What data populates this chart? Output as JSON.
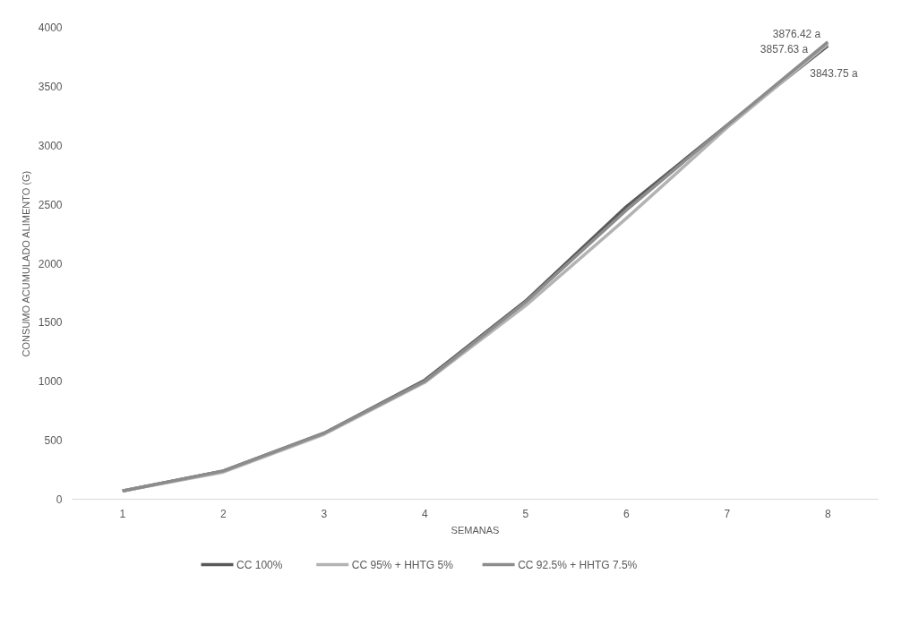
{
  "chart_data": {
    "type": "line",
    "xlabel": "SEMANAS",
    "ylabel": "CONSUMO ACUMULADO ALIMENTO (G)",
    "categories": [
      "1",
      "2",
      "3",
      "4",
      "5",
      "6",
      "7",
      "8"
    ],
    "ylim": [
      0,
      4000
    ],
    "yticks": [
      0,
      500,
      1000,
      1500,
      2000,
      2500,
      3000,
      3500,
      4000
    ],
    "grid": false,
    "legend": "bottom",
    "marker": "none",
    "line_style": "solid",
    "series": [
      {
        "name": "CC 100%",
        "color": "#595959",
        "values": [
          70,
          240,
          560,
          1010,
          1680,
          2480,
          3170,
          3843.75
        ],
        "value_labels": [
          null,
          null,
          null,
          null,
          null,
          null,
          null,
          "3843.75 a"
        ]
      },
      {
        "name": "CC 95% + HHTG 5%",
        "color": "#b3b3b3",
        "values": [
          70,
          230,
          550,
          990,
          1640,
          2380,
          3150,
          3857.63
        ],
        "value_labels": [
          null,
          null,
          null,
          null,
          null,
          null,
          null,
          "3857.63 a"
        ]
      },
      {
        "name": "CC 92.5% + HHTG 7.5%",
        "color": "#8c8c8c",
        "values": [
          70,
          240,
          560,
          1000,
          1670,
          2450,
          3170,
          3876.42
        ],
        "value_labels": [
          null,
          null,
          null,
          null,
          null,
          null,
          null,
          "3876.42 a"
        ]
      }
    ]
  }
}
